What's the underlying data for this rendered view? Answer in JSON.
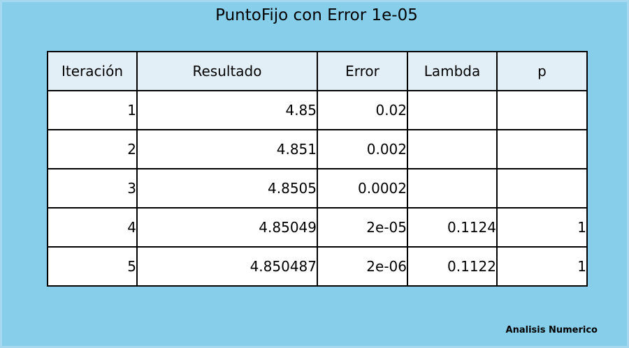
{
  "title": "PuntoFijo con Error 1e-05",
  "footer": "Analisis Numerico",
  "colors": {
    "background": "#87ceeb",
    "header_fill": "#e3eff6",
    "cell_fill": "#ffffff",
    "border": "#000000"
  },
  "chart_data": {
    "type": "table",
    "title": "PuntoFijo con Error 1e-05",
    "columns": [
      "Iteración",
      "Resultado",
      "Error",
      "Lambda",
      "p"
    ],
    "rows": [
      [
        "1",
        "4.85",
        "0.02",
        "",
        ""
      ],
      [
        "2",
        "4.851",
        "0.002",
        "",
        ""
      ],
      [
        "3",
        "4.8505",
        "0.0002",
        "",
        ""
      ],
      [
        "4",
        "4.85049",
        "2e-05",
        "0.1124",
        "1"
      ],
      [
        "5",
        "4.850487",
        "2e-06",
        "0.1122",
        "1"
      ]
    ]
  }
}
